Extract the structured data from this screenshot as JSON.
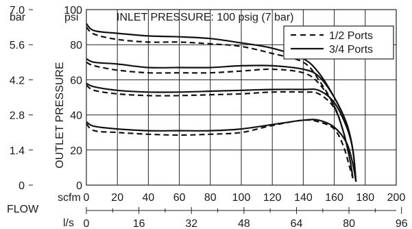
{
  "chart_data": {
    "type": "line",
    "title": "INLET PRESSURE: 100 psig (7 bar)",
    "ylabel": "OUTLET PRESSURE",
    "xlabel": "FLOW",
    "x_unit_primary": "scfm",
    "x_unit_secondary": "l/s",
    "y_unit_primary": "psi",
    "y_unit_secondary": "bar",
    "xlim": [
      0,
      200
    ],
    "ylim": [
      0,
      100
    ],
    "grid": true,
    "legend_position": "top-right",
    "x_ticks": [
      "0",
      "20",
      "40",
      "60",
      "80",
      "100",
      "120",
      "140",
      "160",
      "180",
      "200"
    ],
    "x2_ticks": [
      "0",
      "16",
      "32",
      "48",
      "64",
      "80",
      "96"
    ],
    "y_ticks": [
      "0",
      "20",
      "40",
      "60",
      "80",
      "100"
    ],
    "y2_ticks": [
      "0",
      "1.4",
      "2.8",
      "4.2",
      "5.6",
      "7.0"
    ],
    "legend": [
      {
        "name": "1/2 Ports",
        "style": "dashed"
      },
      {
        "name": "3/4 Ports",
        "style": "solid"
      }
    ],
    "series": [
      {
        "port": "3/4 Ports",
        "style": "solid",
        "points": [
          [
            0,
            92
          ],
          [
            5,
            88
          ],
          [
            20,
            86.5
          ],
          [
            40,
            85
          ],
          [
            60,
            84.5
          ],
          [
            80,
            83.5
          ],
          [
            100,
            81
          ],
          [
            120,
            78
          ],
          [
            140,
            72
          ],
          [
            150,
            64
          ],
          [
            160,
            50
          ],
          [
            168,
            35
          ],
          [
            172,
            20
          ],
          [
            174,
            2
          ]
        ]
      },
      {
        "port": "1/2 Ports",
        "style": "dashed",
        "points": [
          [
            0,
            90
          ],
          [
            5,
            86
          ],
          [
            20,
            83
          ],
          [
            40,
            81.5
          ],
          [
            60,
            81.5
          ],
          [
            80,
            80.5
          ],
          [
            100,
            79
          ],
          [
            120,
            75
          ],
          [
            140,
            70
          ],
          [
            150,
            60
          ],
          [
            160,
            45
          ],
          [
            166,
            30
          ],
          [
            170,
            15
          ],
          [
            172,
            4
          ]
        ]
      },
      {
        "port": "3/4 Ports",
        "style": "solid",
        "points": [
          [
            0,
            72
          ],
          [
            5,
            70
          ],
          [
            20,
            69
          ],
          [
            40,
            67
          ],
          [
            60,
            67
          ],
          [
            80,
            67
          ],
          [
            100,
            68
          ],
          [
            120,
            68
          ],
          [
            140,
            66
          ],
          [
            150,
            62
          ],
          [
            160,
            50
          ],
          [
            168,
            35
          ],
          [
            172,
            20
          ],
          [
            174,
            2
          ]
        ]
      },
      {
        "port": "1/2 Ports",
        "style": "dashed",
        "points": [
          [
            0,
            70
          ],
          [
            5,
            68
          ],
          [
            20,
            65.5
          ],
          [
            40,
            64
          ],
          [
            60,
            64
          ],
          [
            80,
            64
          ],
          [
            100,
            65
          ],
          [
            120,
            66
          ],
          [
            140,
            64
          ],
          [
            150,
            58
          ],
          [
            160,
            45
          ],
          [
            166,
            30
          ],
          [
            170,
            15
          ],
          [
            172,
            4
          ]
        ]
      },
      {
        "port": "3/4 Ports",
        "style": "solid",
        "points": [
          [
            0,
            58
          ],
          [
            5,
            56
          ],
          [
            20,
            54
          ],
          [
            40,
            53
          ],
          [
            60,
            53
          ],
          [
            80,
            53.5
          ],
          [
            100,
            54
          ],
          [
            120,
            54.5
          ],
          [
            140,
            54.5
          ],
          [
            150,
            54
          ],
          [
            160,
            47
          ],
          [
            168,
            33
          ],
          [
            172,
            20
          ],
          [
            174,
            2
          ]
        ]
      },
      {
        "port": "1/2 Ports",
        "style": "dashed",
        "points": [
          [
            0,
            57
          ],
          [
            5,
            54
          ],
          [
            20,
            52
          ],
          [
            40,
            51
          ],
          [
            60,
            51
          ],
          [
            80,
            51.5
          ],
          [
            100,
            52
          ],
          [
            120,
            53
          ],
          [
            140,
            53
          ],
          [
            150,
            52
          ],
          [
            160,
            44
          ],
          [
            166,
            30
          ],
          [
            170,
            15
          ],
          [
            172,
            4
          ]
        ]
      },
      {
        "port": "3/4 Ports",
        "style": "solid",
        "points": [
          [
            0,
            36
          ],
          [
            5,
            33.5
          ],
          [
            20,
            32
          ],
          [
            40,
            31
          ],
          [
            60,
            31
          ],
          [
            80,
            31
          ],
          [
            100,
            32
          ],
          [
            120,
            34.5
          ],
          [
            140,
            37
          ],
          [
            150,
            37
          ],
          [
            160,
            33
          ],
          [
            168,
            24
          ],
          [
            172,
            12
          ],
          [
            174,
            2
          ]
        ]
      },
      {
        "port": "1/2 Ports",
        "style": "dashed",
        "points": [
          [
            0,
            35
          ],
          [
            5,
            31
          ],
          [
            20,
            30
          ],
          [
            40,
            29
          ],
          [
            60,
            28.5
          ],
          [
            80,
            29
          ],
          [
            100,
            30
          ],
          [
            120,
            34
          ],
          [
            140,
            37
          ],
          [
            150,
            36
          ],
          [
            160,
            32
          ],
          [
            166,
            22
          ],
          [
            170,
            10
          ],
          [
            172,
            4
          ]
        ]
      }
    ]
  }
}
